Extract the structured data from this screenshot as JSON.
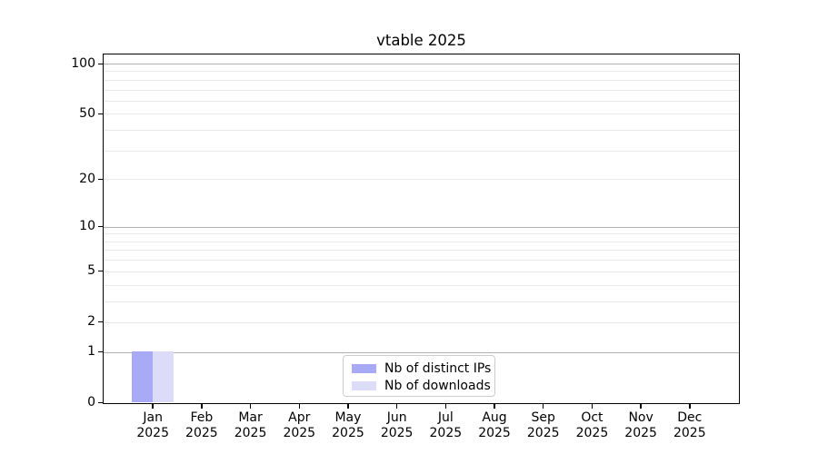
{
  "chart_data": {
    "type": "bar",
    "title": "vtable 2025",
    "categories": [
      "Jan",
      "Feb",
      "Mar",
      "Apr",
      "May",
      "Jun",
      "Jul",
      "Aug",
      "Sep",
      "Oct",
      "Nov",
      "Dec"
    ],
    "x_year_label": "2025",
    "series": [
      {
        "name": "Nb of distinct IPs",
        "color": "#a9aaf5",
        "values": [
          1,
          0,
          0,
          0,
          0,
          0,
          0,
          0,
          0,
          0,
          0,
          0
        ]
      },
      {
        "name": "Nb of downloads",
        "color": "#dcdcf8",
        "values": [
          1,
          0,
          0,
          0,
          0,
          0,
          0,
          0,
          0,
          0,
          0,
          0
        ]
      }
    ],
    "y_axis": {
      "scale": "log1p",
      "ticks": [
        100,
        50,
        20,
        10,
        5,
        2,
        1,
        0
      ],
      "major_gridlines": [
        1,
        10,
        100
      ],
      "minor_gridlines": [
        2,
        3,
        4,
        5,
        6,
        7,
        8,
        9,
        20,
        30,
        40,
        50,
        60,
        70,
        80,
        90
      ],
      "ylim": [
        0,
        113
      ]
    },
    "legend": {
      "position": "lower center"
    },
    "grid": true
  },
  "colors": {
    "axis": "#000000",
    "major_grid": "#b0b0b0",
    "minor_grid": "#e9e9e9",
    "background": "#ffffff",
    "legend_border": "#cccccc"
  }
}
